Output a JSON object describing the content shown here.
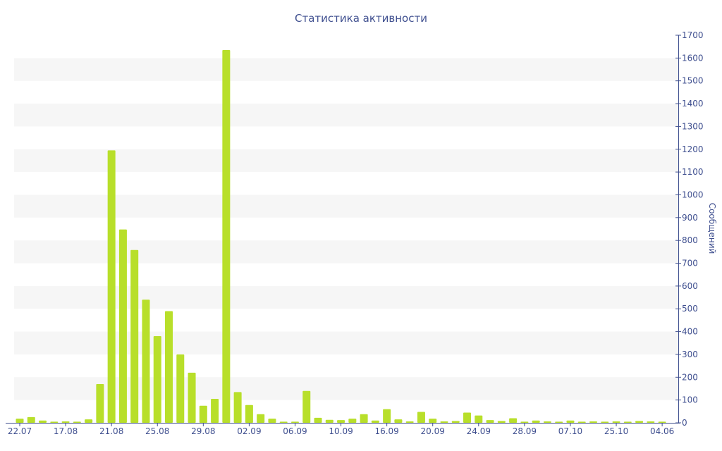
{
  "chart_data": {
    "type": "bar",
    "title": "Статистика активности",
    "xlabel": "",
    "ylabel": "Сообщений",
    "ylim": [
      0,
      1700
    ],
    "y_ticks": [
      0,
      100,
      200,
      300,
      400,
      500,
      600,
      700,
      800,
      900,
      1000,
      1100,
      1200,
      1300,
      1400,
      1500,
      1600,
      1700
    ],
    "y_axis_side": "right",
    "x_tick_labels": [
      "22.07",
      "17.08",
      "21.08",
      "25.08",
      "29.08",
      "02.09",
      "06.09",
      "10.09",
      "16.09",
      "20.09",
      "24.09",
      "28.09",
      "07.10",
      "25.10",
      "04.06"
    ],
    "x_tick_label_bar_index": [
      0,
      4,
      8,
      12,
      16,
      20,
      24,
      28,
      32,
      36,
      40,
      44,
      48,
      52,
      56
    ],
    "values": [
      18,
      25,
      10,
      5,
      6,
      5,
      15,
      170,
      1195,
      848,
      758,
      540,
      380,
      490,
      300,
      220,
      75,
      105,
      1635,
      135,
      78,
      38,
      18,
      5,
      5,
      140,
      22,
      13,
      12,
      18,
      38,
      10,
      60,
      15,
      6,
      48,
      18,
      6,
      8,
      45,
      32,
      12,
      8,
      20,
      5,
      10,
      6,
      5,
      10,
      5,
      6,
      5,
      6,
      5,
      8,
      6,
      5
    ],
    "grid": "alternating horizontal bands",
    "colors": {
      "bar": "#b8df2a",
      "band": "#f6f6f6",
      "axis": "#3f4f8f",
      "text": "#3f4f8f"
    }
  }
}
